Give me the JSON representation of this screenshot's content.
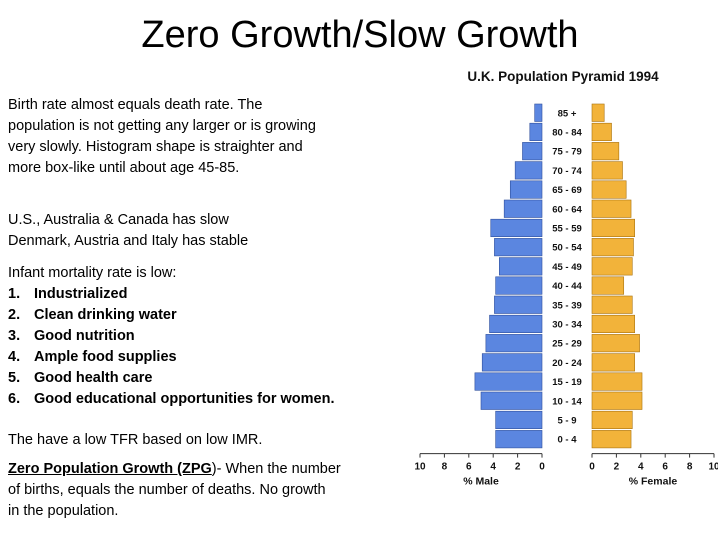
{
  "title": "Zero Growth/Slow Growth",
  "paragraph1": {
    "lines": [
      "Birth rate almost equals death rate.  The",
      "population is not getting any larger or is growing",
      "very slowly.  Histogram shape is straighter and",
      "more box-like until about age 45-85."
    ]
  },
  "paragraph2": {
    "lines": [
      "U.S., Australia & Canada has slow",
      "Denmark, Austria and Italy has stable"
    ]
  },
  "mortality": {
    "intro": "Infant mortality rate is low:",
    "items": [
      {
        "num": "1.",
        "text": "Industrialized"
      },
      {
        "num": "2.",
        "text": "Clean drinking water"
      },
      {
        "num": "3.",
        "text": "Good nutrition"
      },
      {
        "num": "4.",
        "text": "Ample food supplies"
      },
      {
        "num": "5.",
        "text": "Good health care"
      },
      {
        "num": "6.",
        "text": "Good educational opportunities for women."
      }
    ]
  },
  "tfr_note": "The have a low TFR based on low IMR.",
  "zpg": {
    "term": "Zero Population Growth (ZPG",
    "rest_line1": ")- When the number",
    "line2": "of births, equals the number of deaths.  No growth",
    "line3": "in the population."
  },
  "chart_data": {
    "type": "bar",
    "title": "U.K. Population Pyramid 1994",
    "categories": [
      "85 +",
      "80 - 84",
      "75 - 79",
      "70 - 74",
      "65 - 69",
      "60 - 64",
      "55 - 59",
      "50 - 54",
      "45 - 49",
      "40 - 44",
      "35 - 39",
      "30 - 34",
      "25 - 29",
      "20 - 24",
      "15 - 19",
      "10 - 14",
      "5 - 9",
      "0 - 4"
    ],
    "series": [
      {
        "name": "% Male",
        "color": "#5b86e0",
        "values": [
          0.6,
          1.0,
          1.6,
          2.2,
          2.6,
          3.1,
          4.2,
          3.9,
          3.5,
          3.8,
          3.9,
          4.3,
          4.6,
          4.9,
          5.5,
          5.0,
          3.8,
          3.8
        ]
      },
      {
        "name": "% Female",
        "color": "#f2b33a",
        "values": [
          1.0,
          1.6,
          2.2,
          2.5,
          2.8,
          3.2,
          3.5,
          3.4,
          3.3,
          2.6,
          3.3,
          3.5,
          3.9,
          3.5,
          4.1,
          4.1,
          3.3,
          3.2
        ]
      }
    ],
    "x_ticks_male": [
      "10",
      "8",
      "6",
      "4",
      "2",
      "0"
    ],
    "x_ticks_female": [
      "0",
      "2",
      "4",
      "6",
      "8",
      "10"
    ],
    "xlim": [
      0,
      10
    ]
  }
}
